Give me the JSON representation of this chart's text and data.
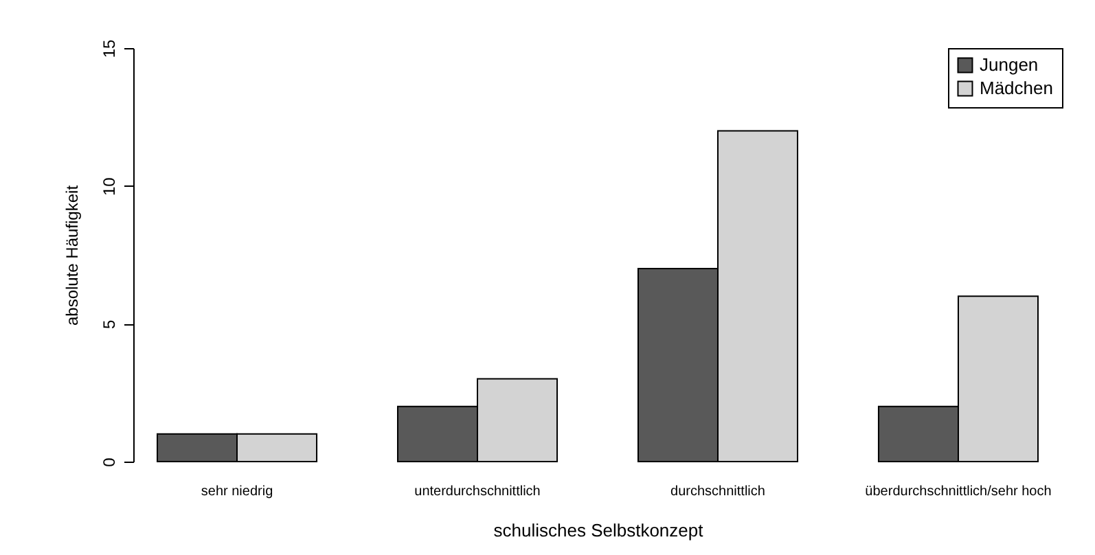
{
  "chart_data": {
    "type": "bar",
    "xlabel": "schulisches Selbstkonzept",
    "ylabel": "absolute Häufigkeit",
    "categories": [
      "sehr niedrig",
      "unterdurchschnittlich",
      "durchschnittlich",
      "überdurchschnittlich/sehr hoch"
    ],
    "series": [
      {
        "name": "Jungen",
        "color": "#595959",
        "values": [
          1,
          2,
          7,
          2
        ]
      },
      {
        "name": "Mädchen",
        "color": "#d3d3d3",
        "values": [
          1,
          3,
          12,
          6
        ]
      }
    ],
    "ylim": [
      0,
      15
    ],
    "yticks": [
      0,
      5,
      10,
      15
    ],
    "grid": false,
    "legend": "top right"
  }
}
